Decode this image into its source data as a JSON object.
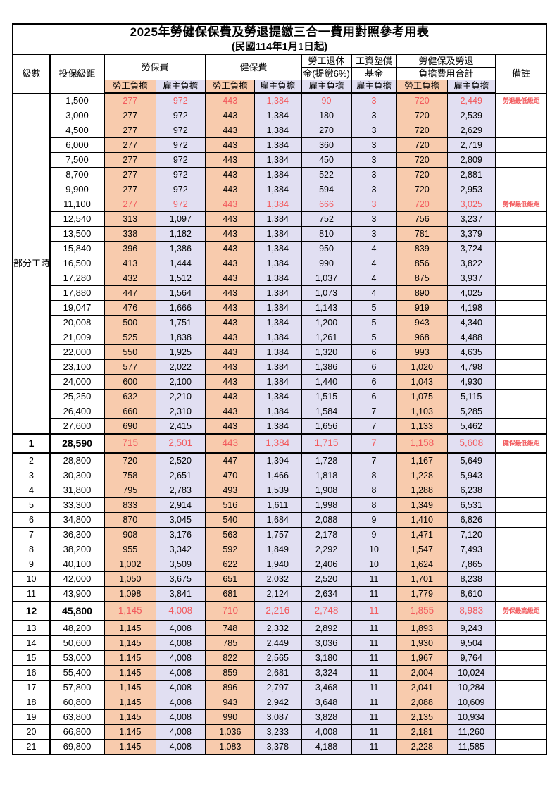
{
  "page": {
    "title": "2025年勞健保保費及勞退提繳三合一費用對照參考用表",
    "subtitle": "(民國114年1月1日起)"
  },
  "colors": {
    "employee_column_bg": "#F8CBAD",
    "employer_column_bg": "#E1DFF2",
    "highlight_red": "#F2595C",
    "border": "#000000"
  },
  "table": {
    "headers": {
      "level": "級數",
      "bracket": "投保級距",
      "labor_group": "勞保費",
      "health_group": "健保費",
      "pension_line1": "勞工退休",
      "pension_line2": "金(提繳6%)",
      "fund_line1": "工資墊償",
      "fund_line2": "基金",
      "total_line1": "勞健保及勞退",
      "total_line2": "負擔費用合計",
      "remark": "備註",
      "employee": "勞工負擔",
      "employer": "雇主負擔"
    },
    "part_time_label": "部分工時",
    "part_time_rowspan": 23,
    "rows": [
      {
        "lv": "",
        "br": "1,500",
        "v": [
          "277",
          "972",
          "443",
          "1,384",
          "90",
          "3",
          "720",
          "2,449"
        ],
        "rm": "勞退最低級距",
        "red": true,
        "big": false
      },
      {
        "lv": "",
        "br": "3,000",
        "v": [
          "277",
          "972",
          "443",
          "1,384",
          "180",
          "3",
          "720",
          "2,539"
        ],
        "rm": "",
        "red": false,
        "big": false
      },
      {
        "lv": "",
        "br": "4,500",
        "v": [
          "277",
          "972",
          "443",
          "1,384",
          "270",
          "3",
          "720",
          "2,629"
        ],
        "rm": "",
        "red": false,
        "big": false
      },
      {
        "lv": "",
        "br": "6,000",
        "v": [
          "277",
          "972",
          "443",
          "1,384",
          "360",
          "3",
          "720",
          "2,719"
        ],
        "rm": "",
        "red": false,
        "big": false
      },
      {
        "lv": "",
        "br": "7,500",
        "v": [
          "277",
          "972",
          "443",
          "1,384",
          "450",
          "3",
          "720",
          "2,809"
        ],
        "rm": "",
        "red": false,
        "big": false
      },
      {
        "lv": "",
        "br": "8,700",
        "v": [
          "277",
          "972",
          "443",
          "1,384",
          "522",
          "3",
          "720",
          "2,881"
        ],
        "rm": "",
        "red": false,
        "big": false
      },
      {
        "lv": "",
        "br": "9,900",
        "v": [
          "277",
          "972",
          "443",
          "1,384",
          "594",
          "3",
          "720",
          "2,953"
        ],
        "rm": "",
        "red": false,
        "big": false
      },
      {
        "lv": "",
        "br": "11,100",
        "v": [
          "277",
          "972",
          "443",
          "1,384",
          "666",
          "3",
          "720",
          "3,025"
        ],
        "rm": "勞保最低級距",
        "red": true,
        "big": false
      },
      {
        "lv": "",
        "br": "12,540",
        "v": [
          "313",
          "1,097",
          "443",
          "1,384",
          "752",
          "3",
          "756",
          "3,237"
        ],
        "rm": "",
        "red": false,
        "big": false
      },
      {
        "lv": "",
        "br": "13,500",
        "v": [
          "338",
          "1,182",
          "443",
          "1,384",
          "810",
          "3",
          "781",
          "3,379"
        ],
        "rm": "",
        "red": false,
        "big": false
      },
      {
        "lv": "",
        "br": "15,840",
        "v": [
          "396",
          "1,386",
          "443",
          "1,384",
          "950",
          "4",
          "839",
          "3,724"
        ],
        "rm": "",
        "red": false,
        "big": false
      },
      {
        "lv": "",
        "br": "16,500",
        "v": [
          "413",
          "1,444",
          "443",
          "1,384",
          "990",
          "4",
          "856",
          "3,822"
        ],
        "rm": "",
        "red": false,
        "big": false
      },
      {
        "lv": "",
        "br": "17,280",
        "v": [
          "432",
          "1,512",
          "443",
          "1,384",
          "1,037",
          "4",
          "875",
          "3,937"
        ],
        "rm": "",
        "red": false,
        "big": false
      },
      {
        "lv": "",
        "br": "17,880",
        "v": [
          "447",
          "1,564",
          "443",
          "1,384",
          "1,073",
          "4",
          "890",
          "4,025"
        ],
        "rm": "",
        "red": false,
        "big": false
      },
      {
        "lv": "",
        "br": "19,047",
        "v": [
          "476",
          "1,666",
          "443",
          "1,384",
          "1,143",
          "5",
          "919",
          "4,198"
        ],
        "rm": "",
        "red": false,
        "big": false
      },
      {
        "lv": "",
        "br": "20,008",
        "v": [
          "500",
          "1,751",
          "443",
          "1,384",
          "1,200",
          "5",
          "943",
          "4,340"
        ],
        "rm": "",
        "red": false,
        "big": false
      },
      {
        "lv": "",
        "br": "21,009",
        "v": [
          "525",
          "1,838",
          "443",
          "1,384",
          "1,261",
          "5",
          "968",
          "4,488"
        ],
        "rm": "",
        "red": false,
        "big": false
      },
      {
        "lv": "",
        "br": "22,000",
        "v": [
          "550",
          "1,925",
          "443",
          "1,384",
          "1,320",
          "6",
          "993",
          "4,635"
        ],
        "rm": "",
        "red": false,
        "big": false
      },
      {
        "lv": "",
        "br": "23,100",
        "v": [
          "577",
          "2,022",
          "443",
          "1,384",
          "1,386",
          "6",
          "1,020",
          "4,798"
        ],
        "rm": "",
        "red": false,
        "big": false
      },
      {
        "lv": "",
        "br": "24,000",
        "v": [
          "600",
          "2,100",
          "443",
          "1,384",
          "1,440",
          "6",
          "1,043",
          "4,930"
        ],
        "rm": "",
        "red": false,
        "big": false
      },
      {
        "lv": "",
        "br": "25,250",
        "v": [
          "632",
          "2,210",
          "443",
          "1,384",
          "1,515",
          "6",
          "1,075",
          "5,115"
        ],
        "rm": "",
        "red": false,
        "big": false
      },
      {
        "lv": "",
        "br": "26,400",
        "v": [
          "660",
          "2,310",
          "443",
          "1,384",
          "1,584",
          "7",
          "1,103",
          "5,285"
        ],
        "rm": "",
        "red": false,
        "big": false
      },
      {
        "lv": "",
        "br": "27,600",
        "v": [
          "690",
          "2,415",
          "443",
          "1,384",
          "1,656",
          "7",
          "1,133",
          "5,462"
        ],
        "rm": "",
        "red": false,
        "big": false
      },
      {
        "lv": "1",
        "br": "28,590",
        "v": [
          "715",
          "2,501",
          "443",
          "1,384",
          "1,715",
          "7",
          "1,158",
          "5,608"
        ],
        "rm": "健保最低級距",
        "red": true,
        "big": true
      },
      {
        "lv": "2",
        "br": "28,800",
        "v": [
          "720",
          "2,520",
          "447",
          "1,394",
          "1,728",
          "7",
          "1,167",
          "5,649"
        ],
        "rm": "",
        "red": false,
        "big": false
      },
      {
        "lv": "3",
        "br": "30,300",
        "v": [
          "758",
          "2,651",
          "470",
          "1,466",
          "1,818",
          "8",
          "1,228",
          "5,943"
        ],
        "rm": "",
        "red": false,
        "big": false
      },
      {
        "lv": "4",
        "br": "31,800",
        "v": [
          "795",
          "2,783",
          "493",
          "1,539",
          "1,908",
          "8",
          "1,288",
          "6,238"
        ],
        "rm": "",
        "red": false,
        "big": false
      },
      {
        "lv": "5",
        "br": "33,300",
        "v": [
          "833",
          "2,914",
          "516",
          "1,611",
          "1,998",
          "8",
          "1,349",
          "6,531"
        ],
        "rm": "",
        "red": false,
        "big": false
      },
      {
        "lv": "6",
        "br": "34,800",
        "v": [
          "870",
          "3,045",
          "540",
          "1,684",
          "2,088",
          "9",
          "1,410",
          "6,826"
        ],
        "rm": "",
        "red": false,
        "big": false
      },
      {
        "lv": "7",
        "br": "36,300",
        "v": [
          "908",
          "3,176",
          "563",
          "1,757",
          "2,178",
          "9",
          "1,471",
          "7,120"
        ],
        "rm": "",
        "red": false,
        "big": false
      },
      {
        "lv": "8",
        "br": "38,200",
        "v": [
          "955",
          "3,342",
          "592",
          "1,849",
          "2,292",
          "10",
          "1,547",
          "7,493"
        ],
        "rm": "",
        "red": false,
        "big": false
      },
      {
        "lv": "9",
        "br": "40,100",
        "v": [
          "1,002",
          "3,509",
          "622",
          "1,940",
          "2,406",
          "10",
          "1,624",
          "7,865"
        ],
        "rm": "",
        "red": false,
        "big": false
      },
      {
        "lv": "10",
        "br": "42,000",
        "v": [
          "1,050",
          "3,675",
          "651",
          "2,032",
          "2,520",
          "11",
          "1,701",
          "8,238"
        ],
        "rm": "",
        "red": false,
        "big": false
      },
      {
        "lv": "11",
        "br": "43,900",
        "v": [
          "1,098",
          "3,841",
          "681",
          "2,124",
          "2,634",
          "11",
          "1,779",
          "8,610"
        ],
        "rm": "",
        "red": false,
        "big": false
      },
      {
        "lv": "12",
        "br": "45,800",
        "v": [
          "1,145",
          "4,008",
          "710",
          "2,216",
          "2,748",
          "11",
          "1,855",
          "8,983"
        ],
        "rm": "勞保最高級距",
        "red": true,
        "big": true
      },
      {
        "lv": "13",
        "br": "48,200",
        "v": [
          "1,145",
          "4,008",
          "748",
          "2,332",
          "2,892",
          "11",
          "1,893",
          "9,243"
        ],
        "rm": "",
        "red": false,
        "big": false
      },
      {
        "lv": "14",
        "br": "50,600",
        "v": [
          "1,145",
          "4,008",
          "785",
          "2,449",
          "3,036",
          "11",
          "1,930",
          "9,504"
        ],
        "rm": "",
        "red": false,
        "big": false
      },
      {
        "lv": "15",
        "br": "53,000",
        "v": [
          "1,145",
          "4,008",
          "822",
          "2,565",
          "3,180",
          "11",
          "1,967",
          "9,764"
        ],
        "rm": "",
        "red": false,
        "big": false
      },
      {
        "lv": "16",
        "br": "55,400",
        "v": [
          "1,145",
          "4,008",
          "859",
          "2,681",
          "3,324",
          "11",
          "2,004",
          "10,024"
        ],
        "rm": "",
        "red": false,
        "big": false
      },
      {
        "lv": "17",
        "br": "57,800",
        "v": [
          "1,145",
          "4,008",
          "896",
          "2,797",
          "3,468",
          "11",
          "2,041",
          "10,284"
        ],
        "rm": "",
        "red": false,
        "big": false
      },
      {
        "lv": "18",
        "br": "60,800",
        "v": [
          "1,145",
          "4,008",
          "943",
          "2,942",
          "3,648",
          "11",
          "2,088",
          "10,609"
        ],
        "rm": "",
        "red": false,
        "big": false
      },
      {
        "lv": "19",
        "br": "63,800",
        "v": [
          "1,145",
          "4,008",
          "990",
          "3,087",
          "3,828",
          "11",
          "2,135",
          "10,934"
        ],
        "rm": "",
        "red": false,
        "big": false
      },
      {
        "lv": "20",
        "br": "66,800",
        "v": [
          "1,145",
          "4,008",
          "1,036",
          "3,233",
          "4,008",
          "11",
          "2,181",
          "11,260"
        ],
        "rm": "",
        "red": false,
        "big": false
      },
      {
        "lv": "21",
        "br": "69,800",
        "v": [
          "1,145",
          "4,008",
          "1,083",
          "3,378",
          "4,188",
          "11",
          "2,228",
          "11,585"
        ],
        "rm": "",
        "red": false,
        "big": false
      }
    ]
  }
}
